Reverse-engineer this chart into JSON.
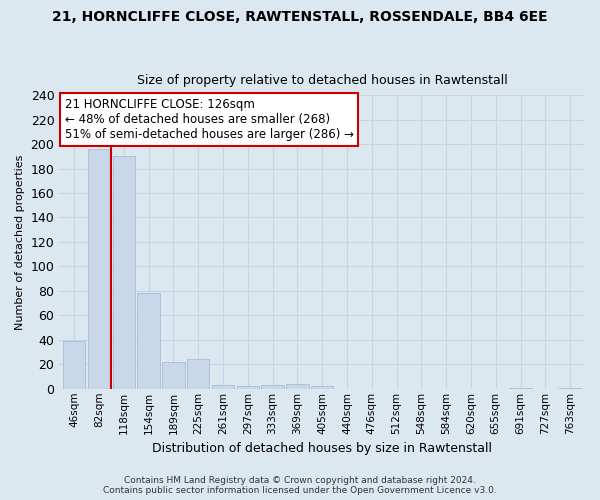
{
  "title_line1": "21, HORNCLIFFE CLOSE, RAWTENSTALL, ROSSENDALE, BB4 6EE",
  "title_line2": "Size of property relative to detached houses in Rawtenstall",
  "xlabel": "Distribution of detached houses by size in Rawtenstall",
  "ylabel": "Number of detached properties",
  "bar_labels": [
    "46sqm",
    "82sqm",
    "118sqm",
    "154sqm",
    "189sqm",
    "225sqm",
    "261sqm",
    "297sqm",
    "333sqm",
    "369sqm",
    "405sqm",
    "440sqm",
    "476sqm",
    "512sqm",
    "548sqm",
    "584sqm",
    "620sqm",
    "655sqm",
    "691sqm",
    "727sqm",
    "763sqm"
  ],
  "bar_values": [
    39,
    196,
    190,
    78,
    22,
    24,
    3,
    2,
    3,
    4,
    2,
    0,
    0,
    0,
    0,
    0,
    0,
    0,
    1,
    0,
    1
  ],
  "bar_color": "#c8d8ea",
  "bar_edge_color": "#a0b8d0",
  "vline_color": "#cc0000",
  "annotation_title": "21 HORNCLIFFE CLOSE: 126sqm",
  "annotation_line1": "← 48% of detached houses are smaller (268)",
  "annotation_line2": "51% of semi-detached houses are larger (286) →",
  "annotation_box_facecolor": "#ffffff",
  "annotation_box_edgecolor": "#cc0000",
  "ylim": [
    0,
    240
  ],
  "yticks": [
    0,
    20,
    40,
    60,
    80,
    100,
    120,
    140,
    160,
    180,
    200,
    220,
    240
  ],
  "footer_line1": "Contains HM Land Registry data © Crown copyright and database right 2024.",
  "footer_line2": "Contains public sector information licensed under the Open Government Licence v3.0.",
  "grid_color": "#c8d4e0",
  "background_color": "#dce8f0"
}
